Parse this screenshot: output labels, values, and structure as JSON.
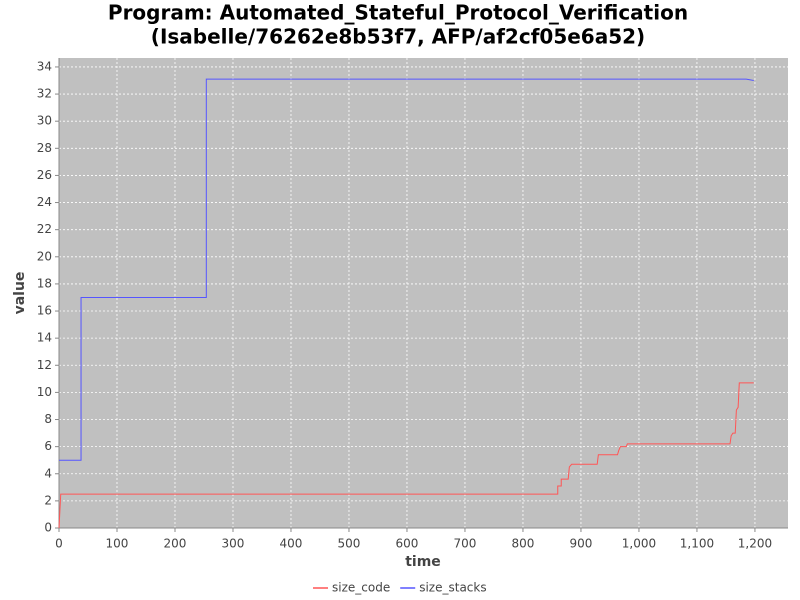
{
  "chart_data": {
    "type": "line",
    "title": [
      "Program: Automated_Stateful_Protocol_Verification",
      "(Isabelle/76262e8b53f7, AFP/af2cf05e6a52)"
    ],
    "xlabel": "time",
    "ylabel": "value",
    "xlim": [
      0,
      1257
    ],
    "ylim": [
      0,
      34.66
    ],
    "xticks": [
      0,
      100,
      200,
      300,
      400,
      500,
      600,
      700,
      800,
      900,
      {
        "value": 1000,
        "label": "1,000"
      },
      {
        "value": 1100,
        "label": "1,100"
      },
      {
        "value": 1200,
        "label": "1,200"
      }
    ],
    "yticks": [
      0,
      2,
      4,
      6,
      8,
      10,
      12,
      14,
      16,
      18,
      20,
      22,
      24,
      26,
      28,
      30,
      32,
      34
    ],
    "grid": true,
    "legend": "bottom",
    "series": [
      {
        "name": "size_code",
        "color": "#ff5555",
        "x": [
          0,
          3,
          860,
          860,
          866,
          866,
          878,
          880,
          884,
          928,
          930,
          963,
          965,
          968,
          978,
          980,
          1157,
          1159,
          1162,
          1166,
          1168,
          1171,
          1173,
          1198
        ],
        "values": [
          0,
          2.5,
          2.5,
          3.1,
          3.1,
          3.6,
          3.6,
          4.5,
          4.7,
          4.7,
          5.4,
          5.4,
          5.7,
          6.0,
          6.0,
          6.2,
          6.2,
          6.8,
          7.0,
          7.0,
          8.7,
          8.9,
          10.7,
          10.7
        ]
      },
      {
        "name": "size_stacks",
        "color": "#5555ff",
        "x": [
          0,
          38,
          38,
          254,
          254,
          1185,
          1198
        ],
        "values": [
          5,
          5,
          17,
          17,
          33.1,
          33.1,
          33.0
        ]
      }
    ]
  }
}
